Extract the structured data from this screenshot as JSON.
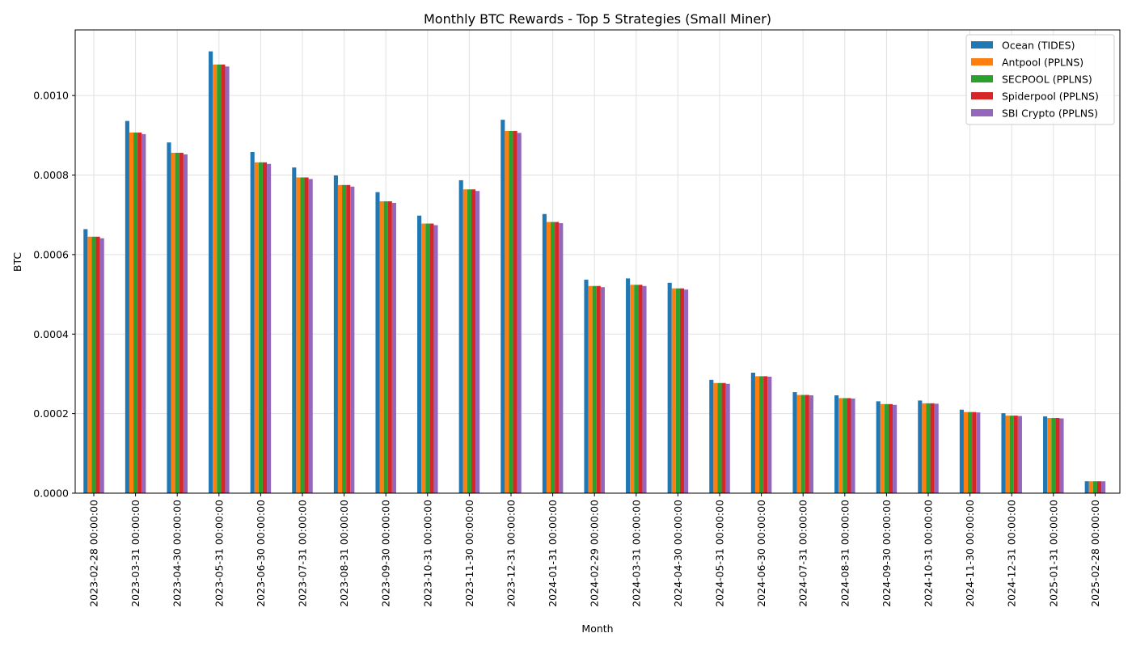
{
  "chart_data": {
    "type": "bar",
    "title": "Monthly BTC Rewards - Top 5 Strategies (Small Miner)",
    "xlabel": "Month",
    "ylabel": "BTC",
    "ylim": [
      0,
      0.001165
    ],
    "yticks": [
      "0.0000",
      "0.0002",
      "0.0004",
      "0.0006",
      "0.0008",
      "0.0010"
    ],
    "ytick_values": [
      0,
      0.0002,
      0.0004,
      0.0006,
      0.0008,
      0.001
    ],
    "grid": true,
    "legend_position": "top-right",
    "categories": [
      "2023-02-28 00:00:00",
      "2023-03-31 00:00:00",
      "2023-04-30 00:00:00",
      "2023-05-31 00:00:00",
      "2023-06-30 00:00:00",
      "2023-07-31 00:00:00",
      "2023-08-31 00:00:00",
      "2023-09-30 00:00:00",
      "2023-10-31 00:00:00",
      "2023-11-30 00:00:00",
      "2023-12-31 00:00:00",
      "2024-01-31 00:00:00",
      "2024-02-29 00:00:00",
      "2024-03-31 00:00:00",
      "2024-04-30 00:00:00",
      "2024-05-31 00:00:00",
      "2024-06-30 00:00:00",
      "2024-07-31 00:00:00",
      "2024-08-31 00:00:00",
      "2024-09-30 00:00:00",
      "2024-10-31 00:00:00",
      "2024-11-30 00:00:00",
      "2024-12-31 00:00:00",
      "2025-01-31 00:00:00",
      "2025-02-28 00:00:00"
    ],
    "series": [
      {
        "name": "Ocean (TIDES)",
        "color": "#1f77b4",
        "values": [
          0.000664,
          0.000936,
          0.000882,
          0.001111,
          0.000858,
          0.000819,
          0.000799,
          0.000757,
          0.000698,
          0.000787,
          0.000939,
          0.000702,
          0.000537,
          0.00054,
          0.000529,
          0.000285,
          0.000303,
          0.000254,
          0.000246,
          0.000231,
          0.000233,
          0.00021,
          0.000201,
          0.000193,
          3e-05
        ]
      },
      {
        "name": "Antpool (PPLNS)",
        "color": "#ff7f0e",
        "values": [
          0.000645,
          0.000907,
          0.000856,
          0.001078,
          0.000832,
          0.000794,
          0.000775,
          0.000734,
          0.000678,
          0.000764,
          0.000911,
          0.000682,
          0.000521,
          0.000524,
          0.000515,
          0.000277,
          0.000294,
          0.000247,
          0.000239,
          0.000224,
          0.000226,
          0.000204,
          0.000195,
          0.000189,
          3e-05
        ]
      },
      {
        "name": "SECPOOL (PPLNS)",
        "color": "#2ca02c",
        "values": [
          0.000645,
          0.000907,
          0.000856,
          0.001078,
          0.000832,
          0.000794,
          0.000775,
          0.000734,
          0.000678,
          0.000764,
          0.000911,
          0.000682,
          0.000521,
          0.000524,
          0.000515,
          0.000277,
          0.000294,
          0.000247,
          0.000239,
          0.000224,
          0.000226,
          0.000204,
          0.000195,
          0.000189,
          3e-05
        ]
      },
      {
        "name": "Spiderpool (PPLNS)",
        "color": "#d62728",
        "values": [
          0.000645,
          0.000907,
          0.000856,
          0.001078,
          0.000832,
          0.000794,
          0.000775,
          0.000734,
          0.000678,
          0.000764,
          0.000911,
          0.000682,
          0.000521,
          0.000524,
          0.000515,
          0.000277,
          0.000294,
          0.000247,
          0.000239,
          0.000224,
          0.000226,
          0.000204,
          0.000195,
          0.000189,
          3e-05
        ]
      },
      {
        "name": "SBI Crypto (PPLNS)",
        "color": "#9467bd",
        "values": [
          0.000641,
          0.000903,
          0.000852,
          0.001073,
          0.000828,
          0.00079,
          0.000771,
          0.00073,
          0.000674,
          0.00076,
          0.000906,
          0.000679,
          0.000518,
          0.000521,
          0.000512,
          0.000275,
          0.000293,
          0.000246,
          0.000238,
          0.000222,
          0.000225,
          0.000203,
          0.000194,
          0.000188,
          3e-05
        ]
      }
    ]
  }
}
